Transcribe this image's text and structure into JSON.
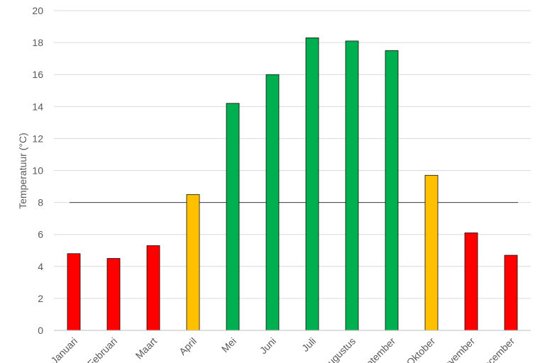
{
  "chart_data": {
    "type": "bar",
    "title": "",
    "xlabel": "",
    "ylabel": "Temperatuur (°C)",
    "ylim": [
      0,
      20
    ],
    "y_ticks": [
      0,
      2,
      4,
      6,
      8,
      10,
      12,
      14,
      16,
      18,
      20
    ],
    "grid": "horizontal",
    "legend": "none",
    "categories": [
      "Januari",
      "Februari",
      "Maart",
      "April",
      "Mei",
      "Juni",
      "Juli",
      "Augustus",
      "September",
      "Oktober",
      "November",
      "December"
    ],
    "values": [
      4.8,
      4.5,
      5.3,
      8.5,
      14.2,
      16.0,
      18.3,
      18.1,
      17.5,
      9.7,
      6.1,
      4.7
    ],
    "bar_colors": [
      "#ff0000",
      "#ff0000",
      "#ff0000",
      "#ffc000",
      "#00b050",
      "#00b050",
      "#00b050",
      "#00b050",
      "#00b050",
      "#ffc000",
      "#ff0000",
      "#ff0000"
    ],
    "reference_line": {
      "y": 8,
      "color": "#404040"
    },
    "colors": {
      "grid": "#d9d9d9",
      "axis": "#bfbfbf",
      "text": "#595959",
      "bar_outline": "#000000"
    }
  }
}
